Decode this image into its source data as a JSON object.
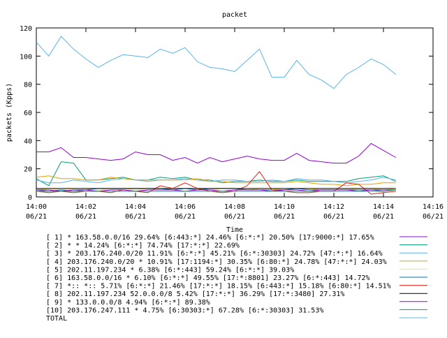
{
  "chart_data": {
    "type": "line",
    "title": "packet",
    "xlabel": "Time",
    "ylabel": "packets (Kpps)",
    "ylim": [
      0,
      120
    ],
    "yticks": [
      0,
      20,
      40,
      60,
      80,
      100,
      120
    ],
    "xlim": [
      "14:00",
      "14:16"
    ],
    "xticks": [
      {
        "time": "14:00",
        "date": "06/21"
      },
      {
        "time": "14:02",
        "date": "06/21"
      },
      {
        "time": "14:04",
        "date": "06/21"
      },
      {
        "time": "14:06",
        "date": "06/21"
      },
      {
        "time": "14:08",
        "date": "06/21"
      },
      {
        "time": "14:10",
        "date": "06/21"
      },
      {
        "time": "14:12",
        "date": "06/21"
      },
      {
        "time": "14:14",
        "date": "06/21"
      },
      {
        "time": "14:16",
        "date": "06/21"
      }
    ],
    "x": [
      "14:00:00",
      "14:00:30",
      "14:01:00",
      "14:01:30",
      "14:02:00",
      "14:02:30",
      "14:03:00",
      "14:03:30",
      "14:04:00",
      "14:04:30",
      "14:05:00",
      "14:05:30",
      "14:06:00",
      "14:06:30",
      "14:07:00",
      "14:07:30",
      "14:08:00",
      "14:08:30",
      "14:09:00",
      "14:09:30",
      "14:10:00",
      "14:10:30",
      "14:11:00",
      "14:11:30",
      "14:12:00",
      "14:12:30",
      "14:13:00",
      "14:13:30",
      "14:14:00",
      "14:14:30"
    ],
    "grid": false,
    "legend_position": "bottom",
    "series": [
      {
        "name": "[ 1] * 163.58.0.0/16 29.64%  [6:443:*] 24.46% [6:*:*] 20.50% [17:9000:*] 17.65%",
        "color": "#9400d3",
        "values": [
          32,
          32,
          35,
          28,
          28,
          27,
          26,
          27,
          32,
          30,
          30,
          26,
          28,
          24,
          28,
          25,
          27,
          29,
          27,
          26,
          26,
          31,
          26,
          25,
          24,
          24,
          29,
          38,
          33,
          28
        ]
      },
      {
        "name": "[ 2] * * 14.24%  [6:*:*] 74.74% [17:*:*] 22.69%",
        "color": "#009e73",
        "values": [
          13,
          8,
          25,
          24,
          12,
          12,
          13,
          14,
          12,
          12,
          14,
          13,
          14,
          12,
          12,
          10,
          11,
          11,
          12,
          11,
          11,
          12,
          11,
          11,
          11,
          11,
          13,
          14,
          15,
          11
        ]
      },
      {
        "name": "[ 3] * 203.176.240.0/20 11.91%  [6:*:*] 45.21% [6:*:30303] 24.72% [47:*:*] 16.64%",
        "color": "#56b4e9",
        "values": [
          12,
          10,
          10,
          12,
          11,
          10,
          12,
          13,
          12,
          11,
          12,
          12,
          13,
          12,
          11,
          12,
          12,
          11,
          11,
          12,
          11,
          13,
          12,
          12,
          11,
          10,
          11,
          12,
          14,
          12
        ]
      },
      {
        "name": "[ 4] 203.176.240.0/20 * 10.91%  [17:1194:*] 30.35% [6:80:*] 24.78% [47:*:*] 24.03%",
        "color": "#e69f00",
        "values": [
          14,
          15,
          13,
          13,
          12,
          12,
          14,
          13,
          12,
          12,
          12,
          12,
          12,
          13,
          11,
          11,
          10,
          10,
          10,
          10,
          10,
          11,
          10,
          9,
          9,
          8,
          9,
          9,
          10,
          10
        ]
      },
      {
        "name": "[ 5] 202.11.197.234 * 6.38%  [6:*:443] 59.24% [6:*:*] 39.03%",
        "color": "#f0e442",
        "values": [
          5,
          6,
          5,
          6,
          6,
          5,
          6,
          6,
          5,
          6,
          6,
          5,
          6,
          6,
          5,
          6,
          6,
          5,
          6,
          6,
          5,
          6,
          6,
          5,
          5,
          5,
          6,
          6,
          5,
          6
        ]
      },
      {
        "name": "[ 6] 163.58.0.0/16 * 6.10%  [6:*:*] 49.55% [17:*:8801] 23.27% [6:*:443] 14.72%",
        "color": "#0072b2",
        "values": [
          5,
          4,
          5,
          4,
          5,
          6,
          6,
          6,
          6,
          6,
          6,
          5,
          6,
          5,
          6,
          6,
          6,
          5,
          5,
          5,
          5,
          6,
          5,
          5,
          5,
          5,
          5,
          5,
          4,
          5
        ]
      },
      {
        "name": "[ 7] *:: *:: 5.71%  [6:*:*] 21.46% [17:*:*] 18.15% [6:443:*] 15.18% [6:80:*] 14.51%",
        "color": "#e51e10",
        "values": [
          4,
          3,
          4,
          3,
          4,
          4,
          3,
          5,
          4,
          3,
          8,
          6,
          10,
          6,
          4,
          3,
          4,
          8,
          18,
          5,
          4,
          3,
          3,
          4,
          4,
          10,
          9,
          2,
          3,
          4
        ]
      },
      {
        "name": "[ 8] 202.11.197.234 52.0.0.0/8 5.42%  [17:*:*] 36.29% [17:*:3480] 27.31%",
        "color": "#000000",
        "values": [
          6,
          6,
          6,
          6,
          6,
          6,
          6,
          6,
          6,
          6,
          6,
          6,
          6,
          6,
          6,
          6,
          6,
          6,
          6,
          6,
          6,
          6,
          6,
          6,
          6,
          6,
          6,
          6,
          6,
          6
        ]
      },
      {
        "name": "[ 9] * 133.0.0.0/8 4.94%  [6:*:*] 89.38%",
        "color": "#9400d3",
        "values": [
          5,
          5,
          4,
          5,
          5,
          4,
          5,
          5,
          4,
          5,
          5,
          5,
          4,
          5,
          5,
          4,
          5,
          5,
          5,
          4,
          5,
          5,
          4,
          5,
          5,
          5,
          4,
          5,
          5,
          5
        ]
      },
      {
        "name": "[10] 203.176.247.111 * 4.75%  [6:30303:*] 67.28% [6:*:30303] 31.53%",
        "color": "#009e73",
        "values": [
          4,
          4,
          4,
          4,
          4,
          4,
          4,
          4,
          4,
          4,
          4,
          4,
          4,
          4,
          4,
          4,
          4,
          4,
          4,
          4,
          4,
          4,
          4,
          4,
          4,
          4,
          4,
          4,
          4,
          5
        ]
      },
      {
        "name": "TOTAL",
        "color": "#56b4e9",
        "values": [
          110,
          100,
          114,
          105,
          98,
          92,
          97,
          101,
          100,
          99,
          105,
          102,
          106,
          96,
          92,
          91,
          89,
          97,
          105,
          85,
          85,
          97,
          87,
          83,
          77,
          87,
          92,
          98,
          94,
          87
        ]
      }
    ]
  }
}
